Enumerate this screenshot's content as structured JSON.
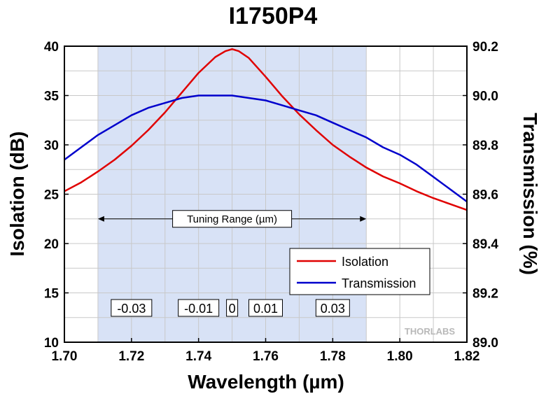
{
  "chart_data": {
    "type": "line",
    "title": "I1750P4",
    "xlabel": "Wavelength (µm)",
    "ylabel": "Isolation (dB)",
    "y2label": "Transmission (%)",
    "xlim": [
      1.7,
      1.82
    ],
    "ylim": [
      10,
      40
    ],
    "y2lim": [
      89.0,
      90.2
    ],
    "xticks": [
      "1.70",
      "1.72",
      "1.74",
      "1.76",
      "1.78",
      "1.80",
      "1.82"
    ],
    "yticks": [
      "10",
      "15",
      "20",
      "25",
      "30",
      "35",
      "40"
    ],
    "y2ticks": [
      "89.0",
      "89.2",
      "89.4",
      "89.6",
      "89.8",
      "90.0",
      "90.2"
    ],
    "grid": true,
    "legend_position": "right-middle",
    "series": [
      {
        "name": "Isolation",
        "axis": "left",
        "color": "#e00000",
        "x": [
          1.7,
          1.705,
          1.71,
          1.715,
          1.72,
          1.725,
          1.73,
          1.735,
          1.74,
          1.745,
          1.748,
          1.75,
          1.752,
          1.755,
          1.76,
          1.765,
          1.77,
          1.775,
          1.78,
          1.785,
          1.79,
          1.795,
          1.8,
          1.805,
          1.81,
          1.815,
          1.82
        ],
        "values": [
          25.3,
          26.2,
          27.3,
          28.5,
          29.9,
          31.5,
          33.3,
          35.3,
          37.3,
          38.9,
          39.5,
          39.7,
          39.5,
          38.8,
          36.9,
          34.9,
          33.1,
          31.5,
          30.0,
          28.8,
          27.7,
          26.8,
          26.1,
          25.3,
          24.6,
          24.0,
          23.4
        ]
      },
      {
        "name": "Transmission",
        "axis": "right",
        "color": "#0000cc",
        "x": [
          1.7,
          1.705,
          1.71,
          1.715,
          1.72,
          1.725,
          1.73,
          1.735,
          1.74,
          1.745,
          1.75,
          1.755,
          1.76,
          1.765,
          1.77,
          1.775,
          1.78,
          1.785,
          1.79,
          1.795,
          1.8,
          1.805,
          1.81,
          1.815,
          1.82
        ],
        "values": [
          89.74,
          89.79,
          89.84,
          89.88,
          89.92,
          89.95,
          89.97,
          89.99,
          90.0,
          90.0,
          90.0,
          89.99,
          89.98,
          89.96,
          89.94,
          89.92,
          89.89,
          89.86,
          89.83,
          89.79,
          89.76,
          89.72,
          89.67,
          89.62,
          89.57
        ]
      }
    ],
    "shaded_region": {
      "x_range": [
        1.71,
        1.79
      ],
      "color": "#d8e2f6"
    },
    "annotations": {
      "tuning_range": {
        "label": "Tuning Range (µm)",
        "x_range": [
          1.71,
          1.79
        ],
        "y": 22.5
      },
      "offsets": [
        {
          "label": "-0.03",
          "x": 1.72
        },
        {
          "label": "-0.01",
          "x": 1.74
        },
        {
          "label": "0",
          "x": 1.75
        },
        {
          "label": "0.01",
          "x": 1.76
        },
        {
          "label": "0.03",
          "x": 1.78
        }
      ]
    },
    "watermark": "THORLABS"
  }
}
